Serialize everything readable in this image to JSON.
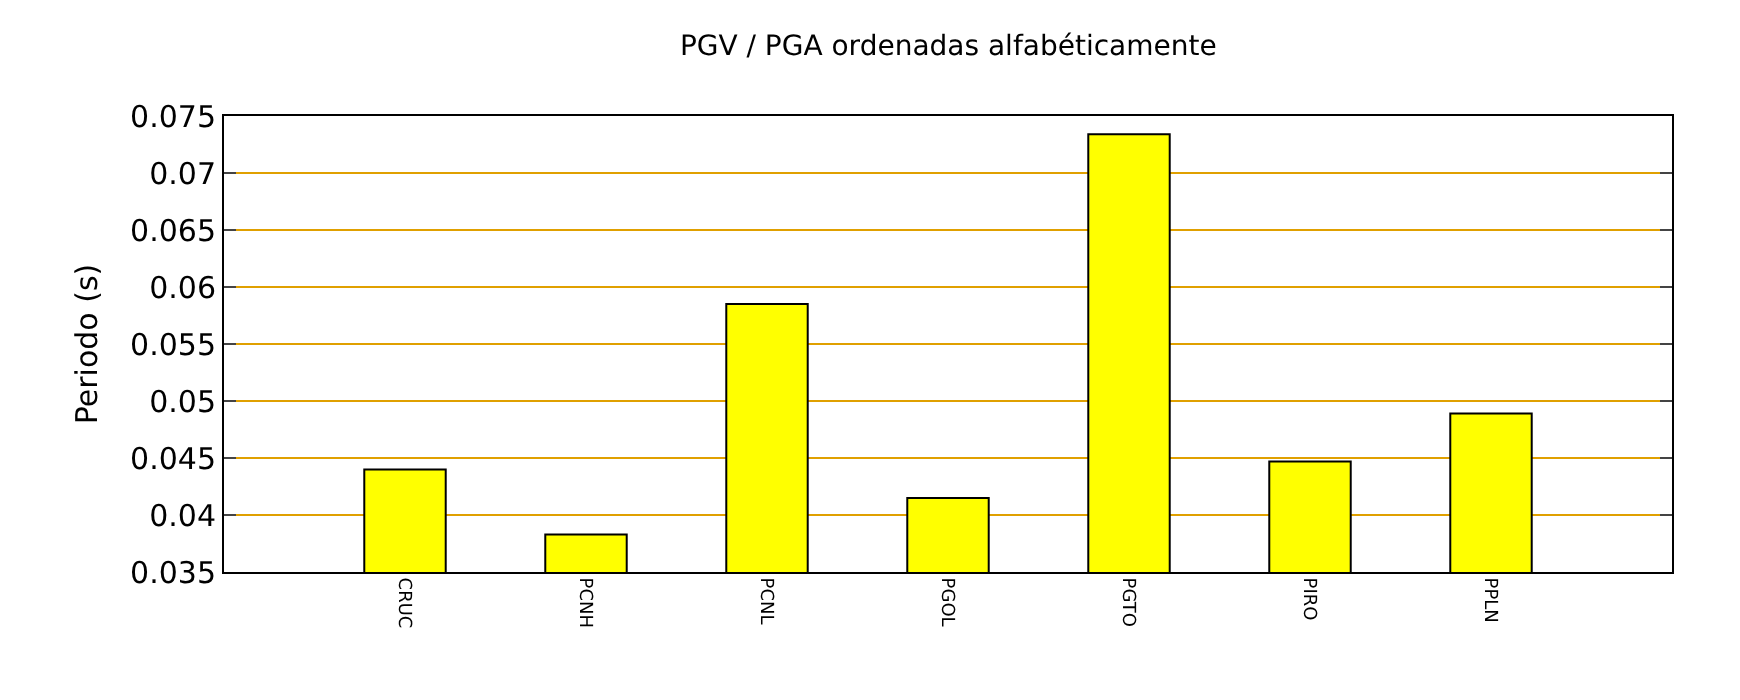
{
  "chart_data": {
    "type": "bar",
    "title": "PGV / PGA ordenadas alfabéticamente",
    "ylabel": "Periodo (s)",
    "categories": [
      "CRUC",
      "PCNH",
      "PCNL",
      "PGOL",
      "PGTO",
      "PIRO",
      "PPLN"
    ],
    "values": [
      0.044,
      0.0383,
      0.0585,
      0.0415,
      0.0734,
      0.0447,
      0.0489
    ],
    "color": "#ffff00",
    "ylim": [
      0.035,
      0.075
    ],
    "yticks": [
      0.035,
      0.04,
      0.045,
      0.05,
      0.055,
      0.06,
      0.065,
      0.07,
      0.075
    ],
    "grid": "y"
  }
}
